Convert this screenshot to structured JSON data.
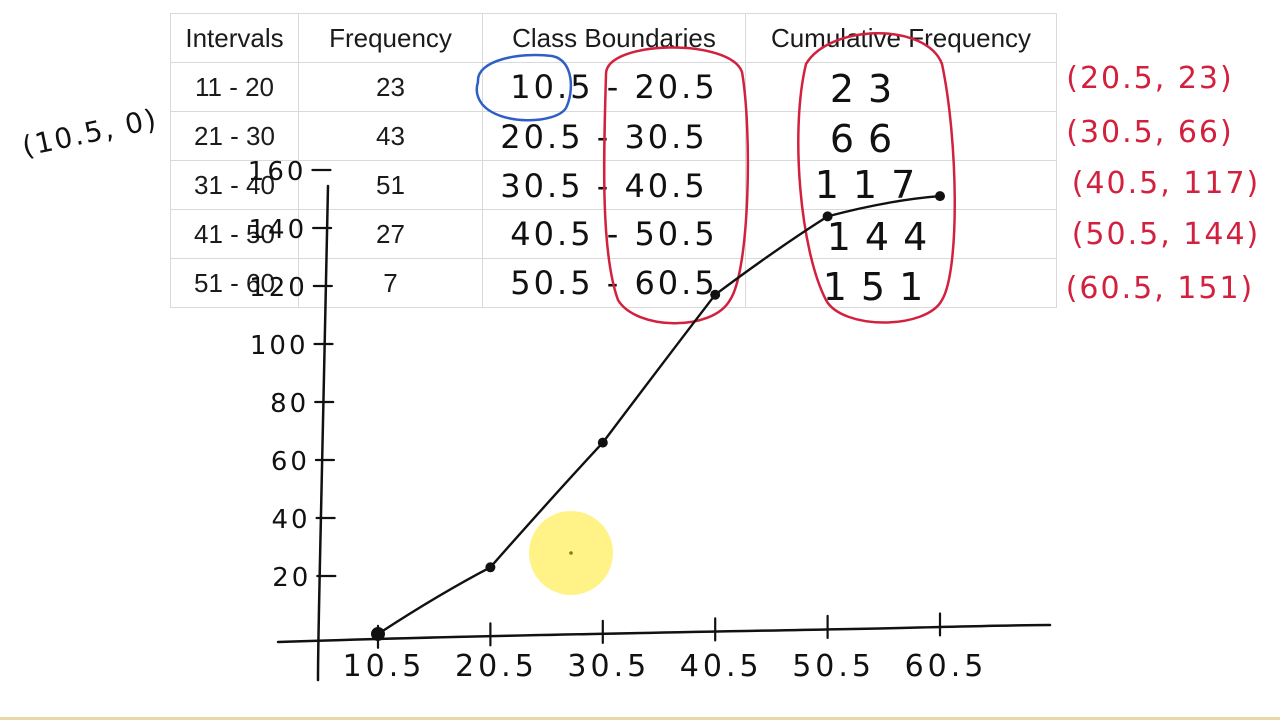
{
  "table": {
    "headers": [
      "Intervals",
      "Frequency",
      "Class Boundaries",
      "Cumulative Frequency"
    ],
    "rows": [
      [
        "11 - 20",
        "23",
        "10.5 - 20.5",
        "23"
      ],
      [
        "21 - 30",
        "43",
        "20.5 - 30.5",
        "66"
      ],
      [
        "31 - 40",
        "51",
        "30.5 - 40.5",
        "117"
      ],
      [
        "41 - 50",
        "27",
        "40.5 - 50.5",
        "144"
      ],
      [
        "51 - 60",
        "7",
        "50.5 - 60.5",
        "151"
      ]
    ]
  },
  "notes": {
    "origin_point": "(10.5, 0)",
    "points": [
      "(20.5, 23)",
      "(30.5, 66)",
      "(40.5, 117)",
      "(50.5, 144)",
      "(60.5, 151)"
    ]
  },
  "chart_data": {
    "type": "line",
    "x_ticks": [
      "10.5",
      "20.5",
      "30.5",
      "40.5",
      "50.5",
      "60.5"
    ],
    "y_ticks": [
      "20",
      "40",
      "60",
      "80",
      "100",
      "120",
      "140",
      "160"
    ],
    "series": [
      {
        "x": [
          10.5,
          20.5,
          30.5,
          40.5,
          50.5,
          60.5
        ],
        "y": [
          0,
          23,
          66,
          117,
          144,
          151
        ]
      }
    ],
    "xlim": [
      10.5,
      60.5
    ],
    "ylim": [
      0,
      160
    ],
    "grid": false
  },
  "colors": {
    "ink_black": "#111111",
    "ink_red": "#d2213f",
    "ink_blue": "#2f5fc4",
    "pointer_highlight": "#fff27a",
    "table_border": "#d9d9d9"
  },
  "icons": {
    "pointer": "cursor-highlight-icon"
  }
}
